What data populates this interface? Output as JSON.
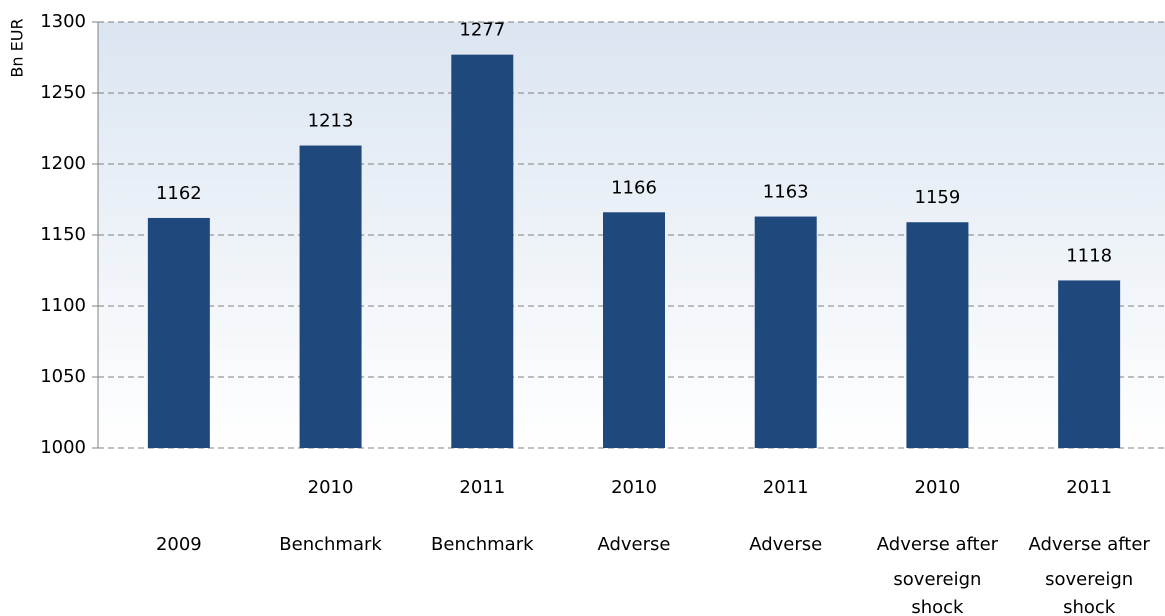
{
  "chart_data": {
    "type": "bar",
    "y_label": "Bn EUR",
    "categories": [
      [
        "2009"
      ],
      [
        "2010",
        "Benchmark"
      ],
      [
        "2011",
        "Benchmark"
      ],
      [
        "2010",
        "Adverse"
      ],
      [
        "2011",
        "Adverse"
      ],
      [
        "2010",
        "Adverse after",
        "sovereign",
        "shock"
      ],
      [
        "2011",
        "Adverse after",
        "sovereign",
        "shock"
      ]
    ],
    "values": [
      1162,
      1213,
      1277,
      1166,
      1163,
      1159,
      1118
    ],
    "color": "#1f497d",
    "ylim": [
      1000,
      1300
    ],
    "yticks": [
      1000,
      1050,
      1100,
      1150,
      1200,
      1250,
      1300
    ],
    "grid": true
  }
}
